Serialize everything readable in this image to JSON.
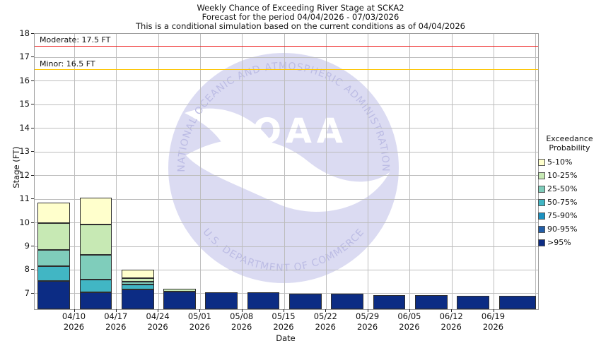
{
  "title": {
    "line1": "Weekly Chance of Exceeding River Stage at SCKA2",
    "line2": "Forecast for the period 04/04/2026 - 07/03/2026",
    "line3": "This is a conditional simulation based on the current conditions as of 04/04/2026"
  },
  "chart_data": {
    "type": "bar",
    "subtype": "stacked_exceedance_probability",
    "title": "Weekly Chance of Exceeding River Stage at SCKA2",
    "subtitle": "Forecast for the period 04/04/2026 - 07/03/2026",
    "note": "This is a conditional simulation based on the current conditions as of 04/04/2026",
    "xlabel": "Date",
    "ylabel": "Stage (FT)",
    "ylim": [
      6.34,
      18
    ],
    "yticks": [
      7,
      8,
      9,
      10,
      11,
      12,
      13,
      14,
      15,
      16,
      17,
      18
    ],
    "grid": true,
    "x_tick_labels": [
      {
        "date": "04/10",
        "year": "2026"
      },
      {
        "date": "04/17",
        "year": "2026"
      },
      {
        "date": "04/24",
        "year": "2026"
      },
      {
        "date": "05/01",
        "year": "2026"
      },
      {
        "date": "05/08",
        "year": "2026"
      },
      {
        "date": "05/15",
        "year": "2026"
      },
      {
        "date": "05/22",
        "year": "2026"
      },
      {
        "date": "05/29",
        "year": "2026"
      },
      {
        "date": "06/05",
        "year": "2026"
      },
      {
        "date": "06/12",
        "year": "2026"
      },
      {
        "date": "06/19",
        "year": "2026"
      }
    ],
    "thresholds": [
      {
        "name": "Moderate",
        "value": 17.5,
        "label": "Moderate: 17.5 FT",
        "color": "#ee2222"
      },
      {
        "name": "Minor",
        "value": 16.5,
        "label": "Minor: 16.5 FT",
        "color": "#fdc500"
      }
    ],
    "legend": {
      "title_line1": "Exceedance",
      "title_line2": "Probability",
      "position": "right",
      "entries": [
        {
          "label": "5-10%",
          "color": "#ffffcc"
        },
        {
          "label": "10-25%",
          "color": "#c7e9b4"
        },
        {
          "label": "25-50%",
          "color": "#7fcdbb"
        },
        {
          "label": "50-75%",
          "color": "#41b6c4"
        },
        {
          "label": "75-90%",
          "color": "#1d91c0"
        },
        {
          "label": "90-95%",
          "color": "#225ea8"
        },
        {
          "label": ">95%",
          "color": "#0c2c84"
        }
      ]
    },
    "bars": [
      {
        "week_start": "04/04",
        "segments": [
          {
            "category": ">95%",
            "top_stage": 7.55
          },
          {
            "category": "50-75%",
            "top_stage": 8.17
          },
          {
            "category": "25-50%",
            "top_stage": 8.86
          },
          {
            "category": "10-25%",
            "top_stage": 10.0
          },
          {
            "category": "5-10%",
            "top_stage": 10.85
          }
        ]
      },
      {
        "week_start": "04/10",
        "segments": [
          {
            "category": ">95%",
            "top_stage": 7.05
          },
          {
            "category": "50-75%",
            "top_stage": 7.6
          },
          {
            "category": "25-50%",
            "top_stage": 8.64
          },
          {
            "category": "10-25%",
            "top_stage": 9.93
          },
          {
            "category": "5-10%",
            "top_stage": 11.05
          }
        ]
      },
      {
        "week_start": "04/17",
        "segments": [
          {
            "category": ">95%",
            "top_stage": 7.17
          },
          {
            "category": "50-75%",
            "top_stage": 7.38
          },
          {
            "category": "25-50%",
            "top_stage": 7.5
          },
          {
            "category": "10-25%",
            "top_stage": 7.65
          },
          {
            "category": "5-10%",
            "top_stage": 8.0
          }
        ]
      },
      {
        "week_start": "04/24",
        "segments": [
          {
            "category": ">95%",
            "top_stage": 7.08
          },
          {
            "category": "10-25%",
            "top_stage": 7.2
          }
        ]
      },
      {
        "week_start": "05/01",
        "segments": [
          {
            "category": ">95%",
            "top_stage": 7.06
          }
        ]
      },
      {
        "week_start": "05/08",
        "segments": [
          {
            "category": ">95%",
            "top_stage": 7.05
          }
        ]
      },
      {
        "week_start": "05/15",
        "segments": [
          {
            "category": ">95%",
            "top_stage": 7.0
          }
        ]
      },
      {
        "week_start": "05/22",
        "segments": [
          {
            "category": ">95%",
            "top_stage": 7.0
          }
        ]
      },
      {
        "week_start": "05/29",
        "segments": [
          {
            "category": ">95%",
            "top_stage": 6.95
          }
        ]
      },
      {
        "week_start": "06/05",
        "segments": [
          {
            "category": ">95%",
            "top_stage": 6.95
          }
        ]
      },
      {
        "week_start": "06/12",
        "segments": [
          {
            "category": ">95%",
            "top_stage": 6.9
          }
        ]
      },
      {
        "week_start": "06/19",
        "segments": [
          {
            "category": ">95%",
            "top_stage": 6.92
          }
        ]
      }
    ],
    "watermark": {
      "ring_text_top": "NATIONAL OCEANIC AND ATMOSPHERIC ADMINISTRATION",
      "ring_text_bottom": "U.S. DEPARTMENT OF COMMERCE",
      "center_text": "NOAA",
      "disc_color": "#dbdbf2",
      "ring_text_color": "#bcbce4"
    },
    "colors": {
      "grid": "#bdbdbd",
      "plot_border": "#9a9a9a",
      "bar_outline": "#2e2e2e",
      "text": "#111111"
    }
  }
}
